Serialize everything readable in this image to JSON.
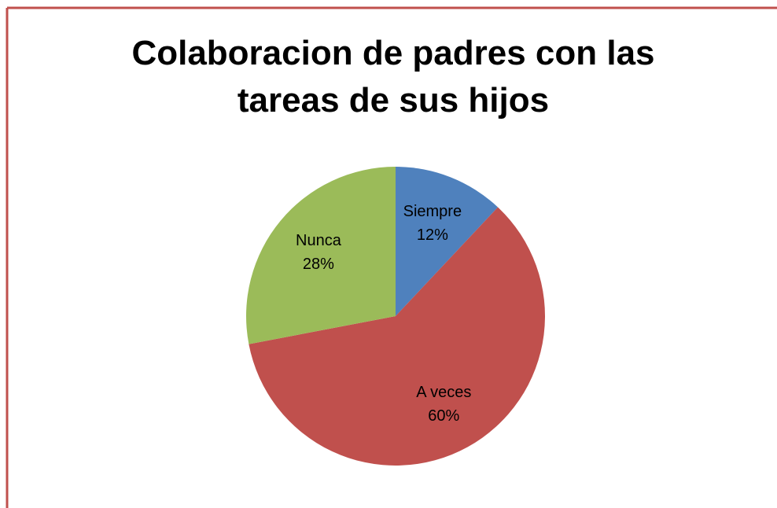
{
  "chart_data": {
    "type": "pie",
    "title": "Colaboracion de padres con las tareas de sus hijos",
    "categories": [
      "Siempre",
      "A veces",
      "Nunca"
    ],
    "values": [
      12,
      60,
      28
    ],
    "value_labels": [
      "12%",
      "60%",
      "28%"
    ],
    "colors": [
      "#4f81bd",
      "#c0504d",
      "#9bbb59"
    ]
  }
}
